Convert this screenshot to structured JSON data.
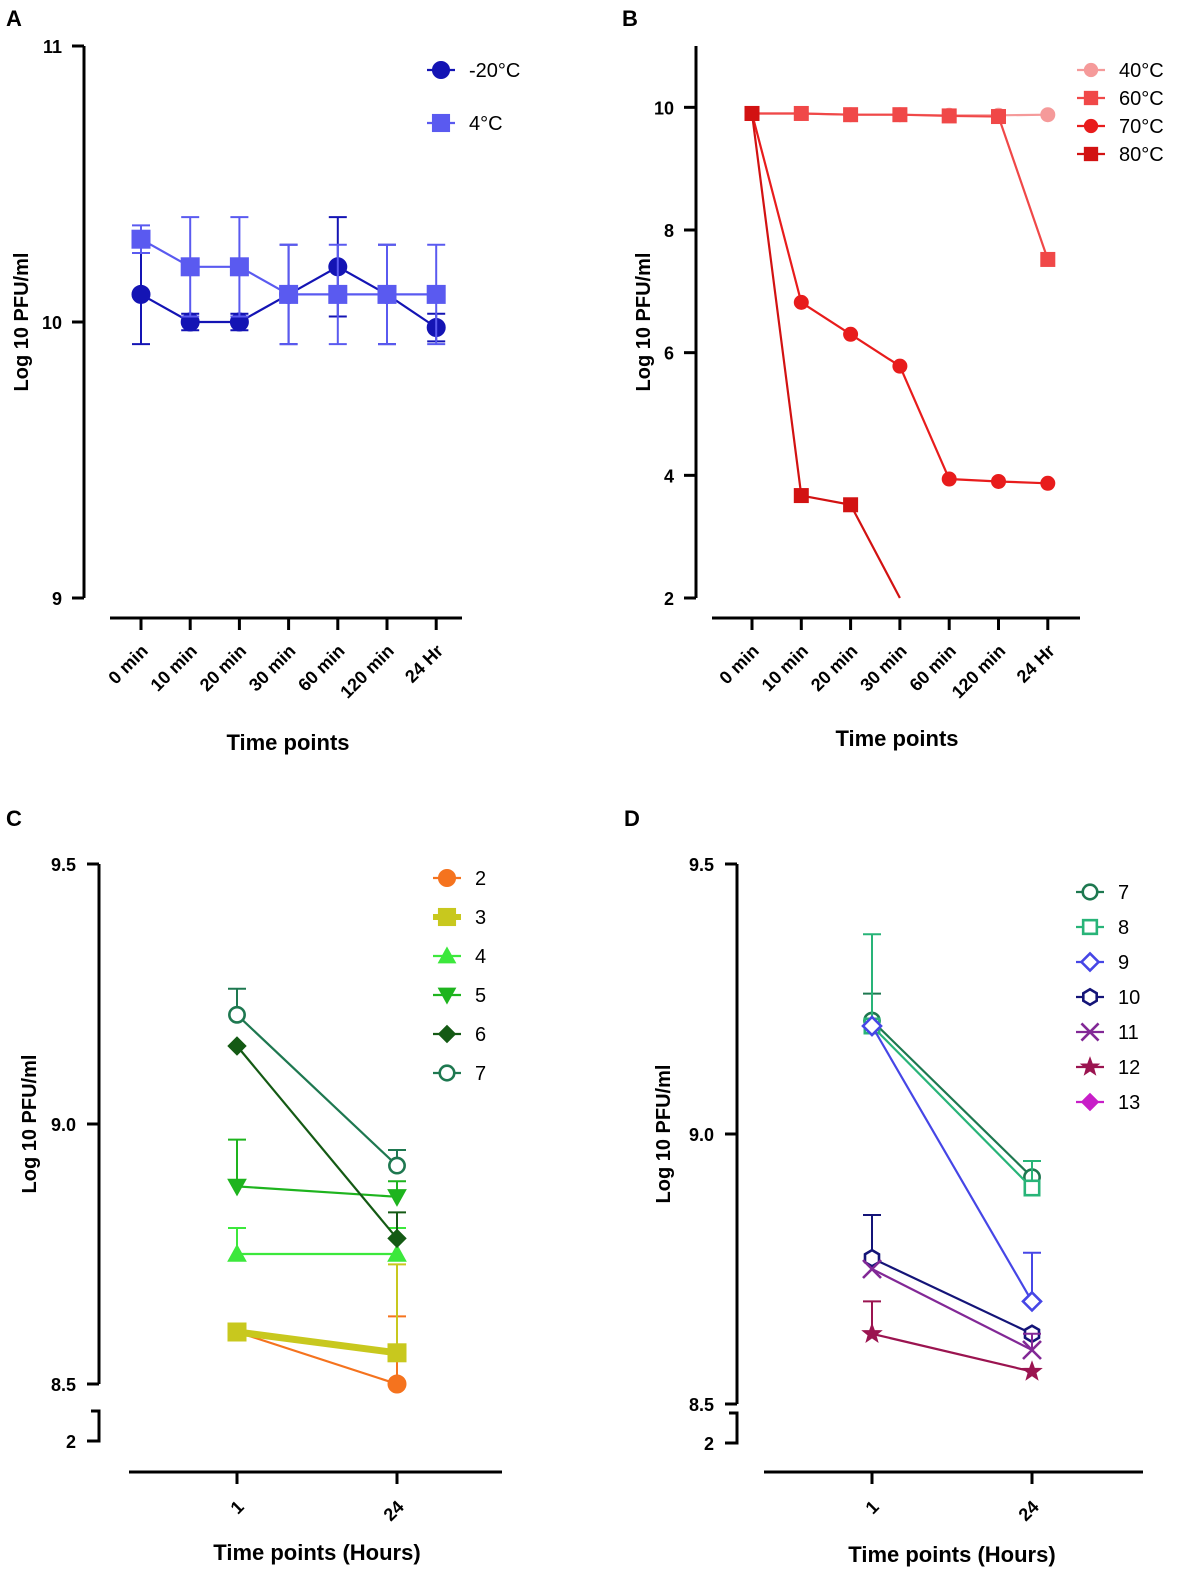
{
  "chart_data": [
    {
      "panel": "A",
      "type": "line",
      "xlabel": "Time points",
      "ylabel": "Log 10  PFU/ml",
      "categories": [
        "0 min",
        "10 min",
        "20 min",
        "30 min",
        "60 min",
        "120 min",
        "24 Hr"
      ],
      "ylim": [
        9,
        11
      ],
      "yticks": [
        "9",
        "10",
        "11"
      ],
      "legend_position": "top-right",
      "series": [
        {
          "name": "-20°C",
          "marker": "circle",
          "color": "#1414b4",
          "values": [
            10.1,
            10.0,
            10.0,
            10.1,
            10.2,
            10.1,
            9.98
          ],
          "err": [
            0.18,
            0.03,
            0.03,
            0.18,
            0.18,
            0.18,
            0.05
          ]
        },
        {
          "name": "4°C",
          "marker": "square",
          "color": "#5a5af0",
          "values": [
            10.3,
            10.2,
            10.2,
            10.1,
            10.1,
            10.1,
            10.1
          ],
          "err": [
            0.05,
            0.18,
            0.18,
            0.18,
            0.18,
            0.18,
            0.18
          ]
        }
      ]
    },
    {
      "panel": "B",
      "type": "line",
      "xlabel": "Time points",
      "ylabel": "Log 10  PFU/ml",
      "categories": [
        "0 min",
        "10 min",
        "20 min",
        "30 min",
        "60 min",
        "120 min",
        "24 Hr"
      ],
      "ylim": [
        2,
        11
      ],
      "yticks": [
        "2",
        "4",
        "6",
        "8",
        "10"
      ],
      "legend_position": "top-right",
      "series": [
        {
          "name": "40°C",
          "marker": "circle",
          "color": "#f59a9a",
          "values": [
            9.9,
            9.9,
            9.88,
            9.88,
            9.87,
            9.87,
            9.88
          ]
        },
        {
          "name": "60°C",
          "marker": "square",
          "color": "#f04848",
          "values": [
            9.9,
            9.9,
            9.88,
            9.88,
            9.86,
            9.85,
            7.52
          ]
        },
        {
          "name": "70°C",
          "marker": "circle",
          "color": "#e81c1c",
          "values": [
            9.9,
            6.82,
            6.3,
            5.78,
            3.94,
            3.9,
            3.87
          ]
        },
        {
          "name": "80°C",
          "marker": "square",
          "color": "#d21212",
          "values": [
            9.9,
            3.67,
            3.52,
            2.0,
            null,
            null,
            null
          ]
        }
      ]
    },
    {
      "panel": "C",
      "type": "line",
      "xlabel": "Time points (Hours)",
      "ylabel": "Log 10  PFU/ml",
      "categories": [
        "1",
        "24"
      ],
      "ylim": [
        8.5,
        9.5
      ],
      "yticks": [
        "8.5",
        "9.0",
        "9.5"
      ],
      "axis_break_tick": "2",
      "legend_position": "top-right",
      "series": [
        {
          "name": "2",
          "marker": "circle",
          "color": "#f5731e",
          "values": [
            8.6,
            8.5
          ],
          "err": [
            0,
            0.13
          ]
        },
        {
          "name": "3",
          "marker": "square",
          "color": "#c8c81e",
          "values": [
            8.6,
            8.56
          ],
          "err": [
            0,
            0.17
          ]
        },
        {
          "name": "4",
          "marker": "triangle-up",
          "color": "#3ce83c",
          "values": [
            8.75,
            8.75
          ],
          "err": [
            0.05,
            0.05
          ]
        },
        {
          "name": "5",
          "marker": "triangle-down",
          "color": "#1eb41e",
          "values": [
            8.88,
            8.86
          ],
          "err": [
            0.09,
            0.03
          ]
        },
        {
          "name": "6",
          "marker": "diamond",
          "color": "#145a14",
          "values": [
            9.15,
            8.78
          ],
          "err": [
            0,
            0.05
          ]
        },
        {
          "name": "7",
          "marker": "open-circle",
          "color": "#1e7850",
          "values": [
            9.21,
            8.92
          ],
          "err": [
            0.05,
            0.03
          ]
        }
      ]
    },
    {
      "panel": "D",
      "type": "line",
      "xlabel": "Time points (Hours)",
      "ylabel": "Log 10  PFU/ml",
      "categories": [
        "1",
        "24"
      ],
      "ylim": [
        8.5,
        9.5
      ],
      "yticks": [
        "8.5",
        "9.0",
        "9.5"
      ],
      "axis_break_tick": "2",
      "legend_position": "top-right",
      "series": [
        {
          "name": "7",
          "marker": "open-circle",
          "color": "#1e7850",
          "values": [
            9.21,
            8.92
          ],
          "err": [
            0.05,
            0.03
          ]
        },
        {
          "name": "8",
          "marker": "open-square",
          "color": "#28b478",
          "values": [
            9.2,
            8.9
          ],
          "err": [
            0.17,
            0.05
          ]
        },
        {
          "name": "9",
          "marker": "open-diamond",
          "color": "#4646e6",
          "values": [
            9.2,
            8.69
          ],
          "err": [
            0,
            0.09
          ]
        },
        {
          "name": "10",
          "marker": "open-hexagon",
          "color": "#141478",
          "values": [
            8.77,
            8.63
          ],
          "err": [
            0.08,
            0
          ]
        },
        {
          "name": "11",
          "marker": "x",
          "color": "#822896",
          "values": [
            8.75,
            8.6
          ],
          "err": [
            0,
            0.03
          ]
        },
        {
          "name": "12",
          "marker": "star",
          "color": "#9b1450",
          "values": [
            8.63,
            8.56
          ],
          "err": [
            0.06,
            0
          ]
        },
        {
          "name": "13",
          "marker": "diamond",
          "color": "#c81ec8",
          "values": [
            null,
            null
          ],
          "err": [
            0,
            0
          ]
        }
      ]
    }
  ],
  "panel_labels": [
    "A",
    "B",
    "C",
    "D"
  ]
}
